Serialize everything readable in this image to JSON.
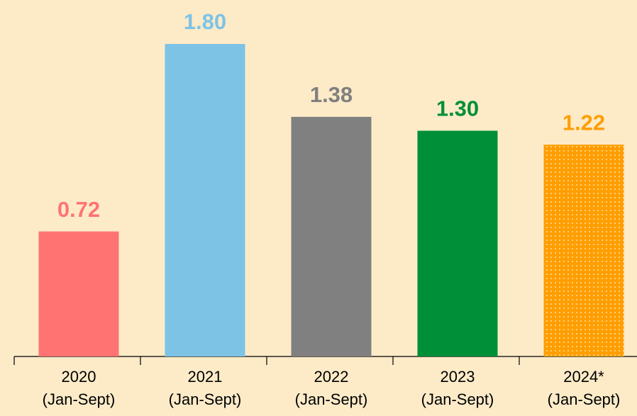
{
  "chart_data": {
    "type": "bar",
    "categories": [
      [
        "2020",
        "(Jan-Sept)"
      ],
      [
        "2021",
        "(Jan-Sept)"
      ],
      [
        "2022",
        "(Jan-Sept)"
      ],
      [
        "2023",
        "(Jan-Sept)"
      ],
      [
        "2024*",
        "(Jan-Sept)"
      ]
    ],
    "values": [
      0.72,
      1.8,
      1.38,
      1.3,
      1.22
    ],
    "value_labels": [
      "0.72",
      "1.80",
      "1.38",
      "1.30",
      "1.22"
    ],
    "colors": [
      "#ff7373",
      "#7dc3e6",
      "#808080",
      "#008f39",
      "#ff9e00"
    ],
    "styles": [
      "solid",
      "solid",
      "solid",
      "solid",
      "dotted"
    ]
  }
}
